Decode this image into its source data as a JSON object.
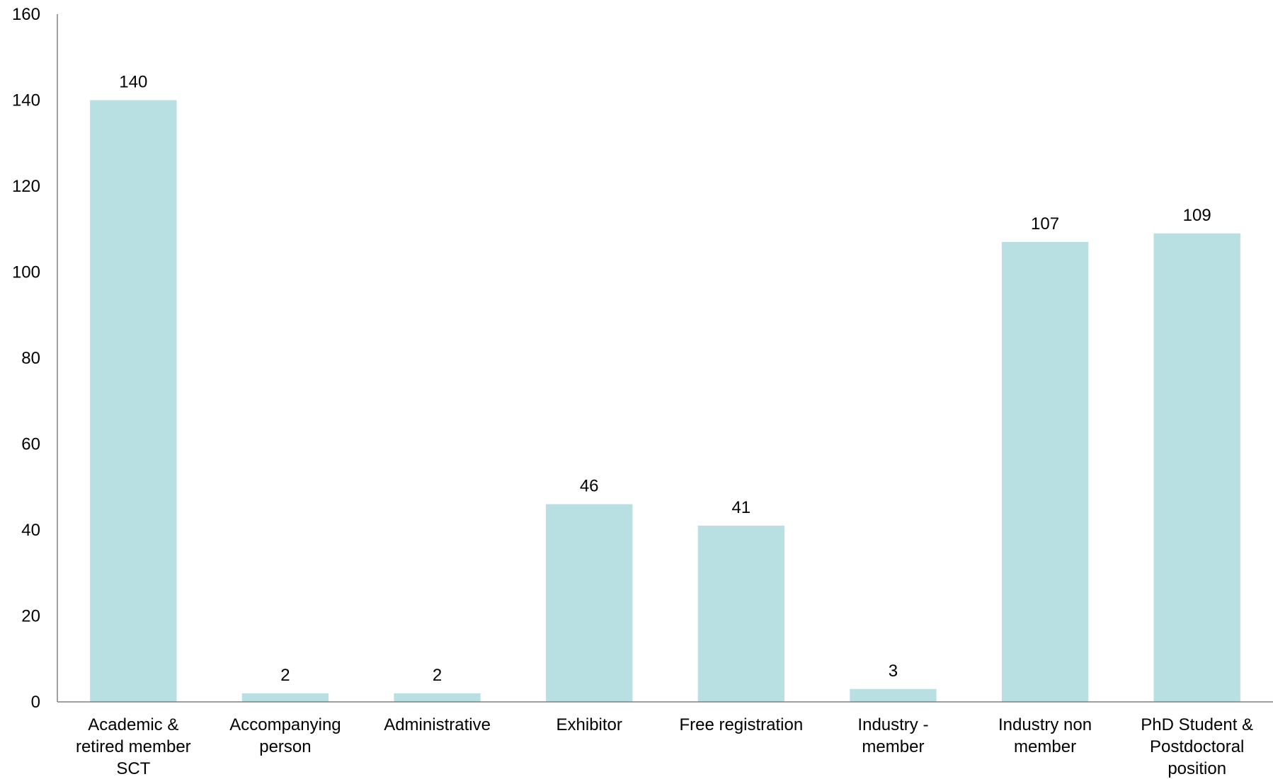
{
  "chart_data": {
    "type": "bar",
    "title": "",
    "xlabel": "",
    "ylabel": "",
    "ylim": [
      0,
      160
    ],
    "yticks": [
      0,
      20,
      40,
      60,
      80,
      100,
      120,
      140,
      160
    ],
    "grid": false,
    "bar_color": "#b8e0e3",
    "axis_color": "#808080",
    "categories": [
      [
        "Academic &",
        "retired member",
        "SCT"
      ],
      [
        "Accompanying",
        "person"
      ],
      [
        "Administrative"
      ],
      [
        "Exhibitor"
      ],
      [
        "Free registration"
      ],
      [
        "Industry -",
        "member"
      ],
      [
        "Industry non",
        "member"
      ],
      [
        "PhD Student &",
        "Postdoctoral",
        "position"
      ]
    ],
    "values": [
      140,
      2,
      2,
      46,
      41,
      3,
      107,
      109
    ]
  }
}
